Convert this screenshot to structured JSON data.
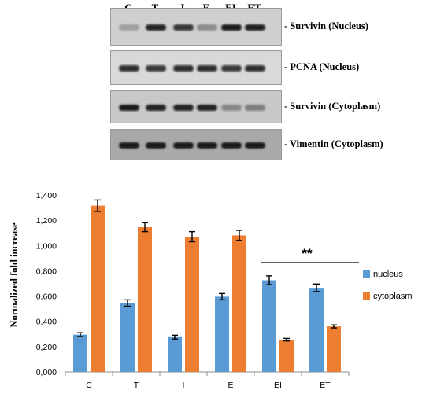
{
  "blot": {
    "lanes": [
      "C",
      "T",
      "I",
      "E",
      "EI",
      "ET"
    ],
    "panels": [
      {
        "label": "- Survivin (Nucleus)",
        "bg": "#cfcfcf",
        "intensity": [
          0.25,
          0.9,
          0.8,
          0.35,
          0.95,
          0.92
        ]
      },
      {
        "label": "- PCNA (Nucleus)",
        "bg": "#d9d9d9",
        "intensity": [
          0.85,
          0.8,
          0.85,
          0.85,
          0.8,
          0.85
        ]
      },
      {
        "label": "- Survivin (Cytoplasm)",
        "bg": "#c8c8c8",
        "intensity": [
          0.95,
          0.9,
          0.9,
          0.9,
          0.35,
          0.4
        ]
      },
      {
        "label": "- Vimentin (Cytoplasm)",
        "bg": "#a9a9a9",
        "intensity": [
          0.95,
          0.95,
          0.95,
          0.95,
          0.95,
          0.95
        ]
      }
    ]
  },
  "chart_data": {
    "type": "bar",
    "categories": [
      "C",
      "T",
      "I",
      "E",
      "EI",
      "ET"
    ],
    "series": [
      {
        "name": "nucleus",
        "color": "#5b9bd5",
        "values": [
          0.295,
          0.545,
          0.275,
          0.595,
          0.725,
          0.665
        ],
        "errors": [
          0.015,
          0.025,
          0.015,
          0.025,
          0.035,
          0.03
        ]
      },
      {
        "name": "cytoplasm",
        "color": "#ed7d31",
        "values": [
          1.315,
          1.145,
          1.07,
          1.08,
          0.255,
          0.36
        ],
        "errors": [
          0.045,
          0.035,
          0.04,
          0.04,
          0.01,
          0.012
        ]
      }
    ],
    "ylabel": "Normalized fold increase",
    "ylim": [
      0,
      1.4
    ],
    "yticks": [
      "0,000",
      "0,200",
      "0,400",
      "0,600",
      "0,800",
      "1,000",
      "1,200",
      "1,400"
    ],
    "annotation": "**",
    "legend_placement": "right"
  }
}
